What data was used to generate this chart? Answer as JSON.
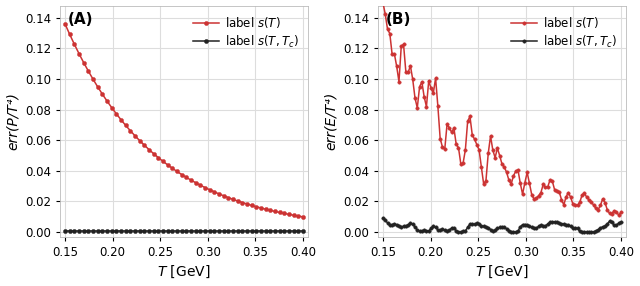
{
  "panel_A": {
    "label": "(A)",
    "ylabel": "err(P/T⁴)",
    "xlabel": "T [GeV]",
    "xlim": [
      0.145,
      0.405
    ],
    "ylim": [
      -0.003,
      0.148
    ],
    "yticks": [
      0.0,
      0.02,
      0.04,
      0.06,
      0.08,
      0.1,
      0.12,
      0.14
    ],
    "xticks": [
      0.15,
      0.2,
      0.25,
      0.3,
      0.35,
      0.4
    ],
    "red_label": "label $s(T)$",
    "black_label": "label $s(T, T_c)$"
  },
  "panel_B": {
    "label": "(B)",
    "ylabel": "err(E/T⁴)",
    "xlabel": "T [GeV]",
    "xlim": [
      0.145,
      0.405
    ],
    "ylim": [
      -0.003,
      0.148
    ],
    "yticks": [
      0.0,
      0.02,
      0.04,
      0.06,
      0.08,
      0.1,
      0.12,
      0.14
    ],
    "xticks": [
      0.15,
      0.2,
      0.25,
      0.3,
      0.35,
      0.4
    ],
    "red_label": "label $s(T)$",
    "black_label": "label $s(T, T_c)$"
  },
  "red_color": "#cc3333",
  "black_color": "#222222",
  "bg_color": "#ffffff",
  "grid_color": "#dddddd",
  "marker": "o",
  "markersize_A_red": 3.0,
  "markersize_A_black": 3.0,
  "markersize_B_red": 2.5,
  "markersize_B_black": 2.5,
  "linewidth": 1.1,
  "legend_fontsize": 8.5,
  "label_fontsize": 10,
  "tick_fontsize": 8.5,
  "title_fontsize": 11
}
